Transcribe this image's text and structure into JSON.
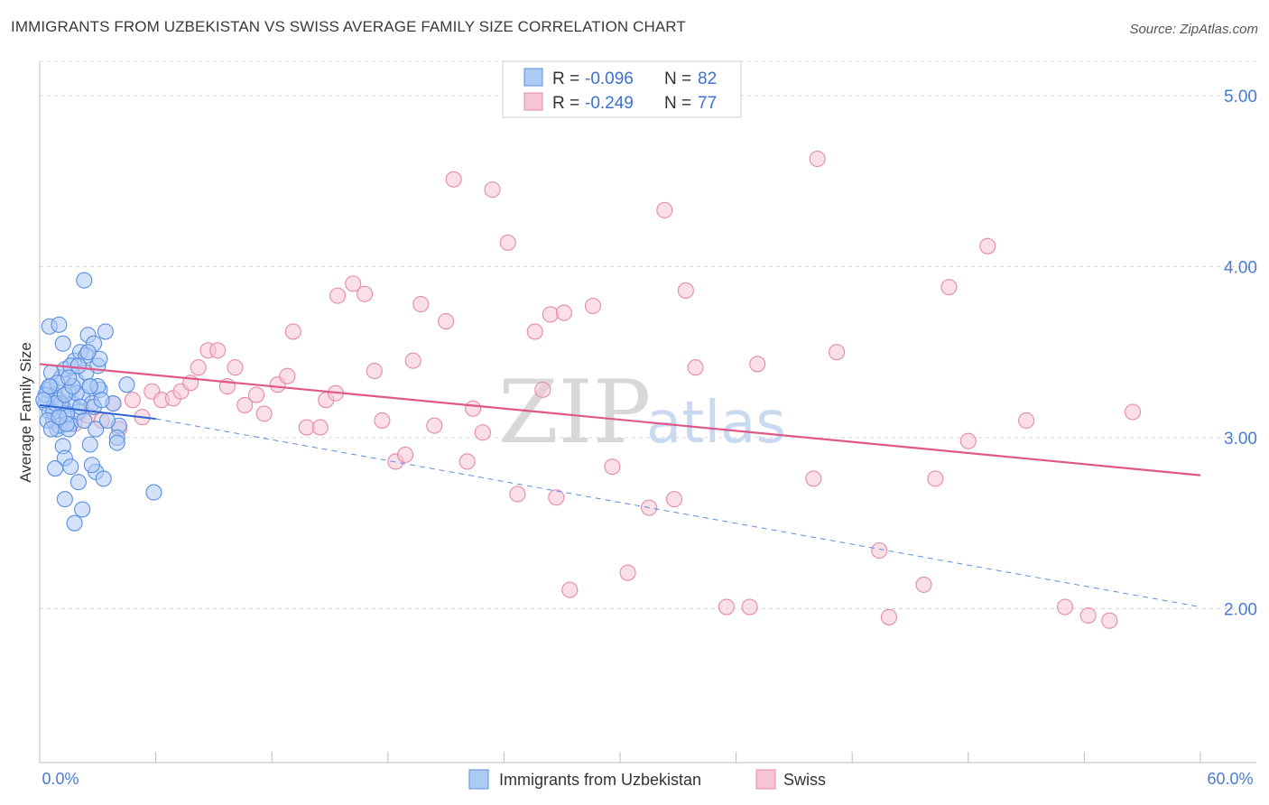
{
  "header": {
    "title": "IMMIGRANTS FROM UZBEKISTAN VS SWISS AVERAGE FAMILY SIZE CORRELATION CHART",
    "source": "Source: ZipAtlas.com"
  },
  "watermark": {
    "part1": "ZIP",
    "part2": "atlas"
  },
  "legend": {
    "rows": [
      {
        "r_label": "R = ",
        "r_value": "-0.096",
        "n_label": "N = ",
        "n_value": "82"
      },
      {
        "r_label": "R = ",
        "r_value": "-0.249",
        "n_label": "N = ",
        "n_value": "77"
      }
    ]
  },
  "colors": {
    "blue_fill": "#aecbf5",
    "blue_stroke": "#5a8ee0",
    "blue_line": "#2f64d0",
    "pink_fill": "#f7c4d4",
    "pink_stroke": "#e58aa8",
    "pink_line": "#e0578a",
    "grid": "#d8d8d8",
    "axis_text": "#4a7bd0"
  },
  "chart_data": {
    "type": "scatter",
    "title": "IMMIGRANTS FROM UZBEKISTAN VS SWISS AVERAGE FAMILY SIZE CORRELATION CHART",
    "xlabel": "",
    "ylabel": "Average Family Size",
    "xlim": [
      0,
      60
    ],
    "ylim": [
      1.1,
      5.2
    ],
    "x_tick_labels": [
      "0.0%",
      "60.0%"
    ],
    "y_ticks": [
      2.0,
      3.0,
      4.0,
      5.0
    ],
    "y_tick_labels": [
      "2.00",
      "3.00",
      "4.00",
      "5.00"
    ],
    "grid": true,
    "series": [
      {
        "name": "Immigrants from Uzbekistan",
        "color": "#5a8ee0",
        "trend": {
          "x": [
            0,
            6
          ],
          "y": [
            3.19,
            3.11
          ],
          "dashed_extension": {
            "x": [
              6,
              60
            ],
            "y": [
              3.11,
              2.01
            ]
          }
        },
        "points": [
          [
            0.3,
            3.2
          ],
          [
            0.4,
            3.28
          ],
          [
            0.5,
            3.15
          ],
          [
            0.6,
            3.3
          ],
          [
            0.7,
            3.1
          ],
          [
            0.8,
            3.25
          ],
          [
            0.9,
            3.05
          ],
          [
            1.0,
            3.22
          ],
          [
            1.1,
            3.35
          ],
          [
            1.2,
            3.18
          ],
          [
            1.3,
            3.4
          ],
          [
            1.4,
            3.12
          ],
          [
            1.5,
            3.27
          ],
          [
            1.6,
            3.08
          ],
          [
            1.7,
            3.2
          ],
          [
            1.8,
            3.45
          ],
          [
            1.9,
            3.33
          ],
          [
            2.0,
            3.15
          ],
          [
            2.1,
            3.5
          ],
          [
            2.2,
            3.24
          ],
          [
            2.3,
            3.1
          ],
          [
            2.4,
            3.38
          ],
          [
            2.5,
            3.6
          ],
          [
            2.6,
            3.3
          ],
          [
            2.7,
            3.2
          ],
          [
            2.8,
            3.55
          ],
          [
            2.9,
            3.05
          ],
          [
            3.0,
            3.42
          ],
          [
            3.1,
            3.28
          ],
          [
            0.5,
            3.65
          ],
          [
            1.0,
            3.66
          ],
          [
            1.2,
            3.55
          ],
          [
            2.3,
            3.92
          ],
          [
            3.4,
            3.62
          ],
          [
            1.2,
            2.95
          ],
          [
            1.3,
            2.88
          ],
          [
            0.8,
            2.82
          ],
          [
            2.6,
            2.96
          ],
          [
            2.0,
            2.74
          ],
          [
            2.9,
            2.8
          ],
          [
            1.3,
            2.64
          ],
          [
            2.2,
            2.58
          ],
          [
            1.8,
            2.5
          ],
          [
            3.3,
            2.76
          ],
          [
            4.1,
            3.07
          ],
          [
            5.9,
            2.68
          ],
          [
            4.0,
            3.0
          ],
          [
            3.8,
            3.2
          ],
          [
            4.5,
            3.31
          ],
          [
            1.0,
            3.07
          ],
          [
            1.5,
            3.05
          ],
          [
            0.3,
            3.25
          ],
          [
            0.6,
            3.38
          ],
          [
            0.9,
            3.32
          ],
          [
            1.4,
            3.14
          ],
          [
            1.6,
            3.42
          ],
          [
            2.4,
            3.48
          ],
          [
            3.0,
            3.3
          ],
          [
            3.1,
            3.46
          ],
          [
            0.7,
            3.15
          ],
          [
            1.1,
            3.2
          ],
          [
            1.9,
            3.26
          ],
          [
            2.5,
            3.5
          ],
          [
            0.4,
            3.1
          ],
          [
            0.8,
            3.2
          ],
          [
            1.3,
            3.25
          ],
          [
            1.7,
            3.3
          ],
          [
            2.1,
            3.18
          ],
          [
            0.6,
            3.05
          ],
          [
            1.4,
            3.08
          ],
          [
            0.2,
            3.22
          ],
          [
            0.5,
            3.3
          ],
          [
            1.0,
            3.12
          ],
          [
            1.5,
            3.35
          ],
          [
            2.0,
            3.42
          ],
          [
            2.6,
            3.3
          ],
          [
            2.8,
            3.18
          ],
          [
            3.2,
            3.22
          ],
          [
            3.5,
            3.1
          ],
          [
            4.0,
            2.97
          ],
          [
            1.6,
            2.83
          ],
          [
            2.7,
            2.84
          ]
        ]
      },
      {
        "name": "Swiss",
        "color": "#e58aa8",
        "trend": {
          "x": [
            0,
            60
          ],
          "y": [
            3.43,
            2.78
          ]
        },
        "points": [
          [
            1.8,
            3.08
          ],
          [
            2.5,
            3.13
          ],
          [
            3.2,
            3.1
          ],
          [
            3.8,
            3.2
          ],
          [
            4.1,
            3.05
          ],
          [
            4.8,
            3.22
          ],
          [
            5.3,
            3.12
          ],
          [
            5.8,
            3.27
          ],
          [
            6.3,
            3.22
          ],
          [
            6.9,
            3.23
          ],
          [
            7.3,
            3.27
          ],
          [
            7.8,
            3.32
          ],
          [
            8.2,
            3.41
          ],
          [
            8.7,
            3.51
          ],
          [
            9.2,
            3.51
          ],
          [
            9.7,
            3.3
          ],
          [
            10.1,
            3.41
          ],
          [
            10.6,
            3.19
          ],
          [
            11.2,
            3.25
          ],
          [
            11.6,
            3.14
          ],
          [
            12.3,
            3.31
          ],
          [
            12.8,
            3.36
          ],
          [
            13.1,
            3.62
          ],
          [
            13.8,
            3.06
          ],
          [
            14.5,
            3.06
          ],
          [
            14.8,
            3.22
          ],
          [
            15.3,
            3.26
          ],
          [
            15.4,
            3.83
          ],
          [
            16.2,
            3.9
          ],
          [
            16.8,
            3.84
          ],
          [
            17.3,
            3.39
          ],
          [
            17.7,
            3.1
          ],
          [
            18.4,
            2.86
          ],
          [
            18.9,
            2.9
          ],
          [
            19.3,
            3.45
          ],
          [
            19.7,
            3.78
          ],
          [
            20.4,
            3.07
          ],
          [
            21.0,
            3.68
          ],
          [
            21.4,
            4.51
          ],
          [
            22.1,
            2.86
          ],
          [
            22.4,
            3.17
          ],
          [
            22.9,
            3.03
          ],
          [
            23.4,
            4.45
          ],
          [
            24.2,
            4.14
          ],
          [
            24.7,
            2.67
          ],
          [
            25.6,
            3.62
          ],
          [
            26.0,
            3.28
          ],
          [
            26.4,
            3.72
          ],
          [
            26.7,
            2.65
          ],
          [
            27.1,
            3.73
          ],
          [
            27.4,
            2.11
          ],
          [
            28.6,
            3.77
          ],
          [
            29.6,
            2.83
          ],
          [
            30.4,
            2.21
          ],
          [
            31.5,
            2.59
          ],
          [
            32.3,
            4.33
          ],
          [
            32.8,
            2.64
          ],
          [
            33.4,
            3.86
          ],
          [
            33.9,
            3.41
          ],
          [
            35.5,
            2.01
          ],
          [
            36.7,
            2.01
          ],
          [
            37.1,
            3.43
          ],
          [
            40.0,
            2.76
          ],
          [
            40.2,
            4.63
          ],
          [
            41.2,
            3.5
          ],
          [
            43.4,
            2.34
          ],
          [
            43.9,
            1.95
          ],
          [
            45.7,
            2.14
          ],
          [
            46.3,
            2.76
          ],
          [
            47.0,
            3.88
          ],
          [
            48.0,
            2.98
          ],
          [
            49.0,
            4.12
          ],
          [
            51.0,
            3.1
          ],
          [
            53.0,
            2.01
          ],
          [
            54.2,
            1.96
          ],
          [
            55.3,
            1.93
          ],
          [
            56.5,
            3.15
          ]
        ]
      }
    ]
  }
}
